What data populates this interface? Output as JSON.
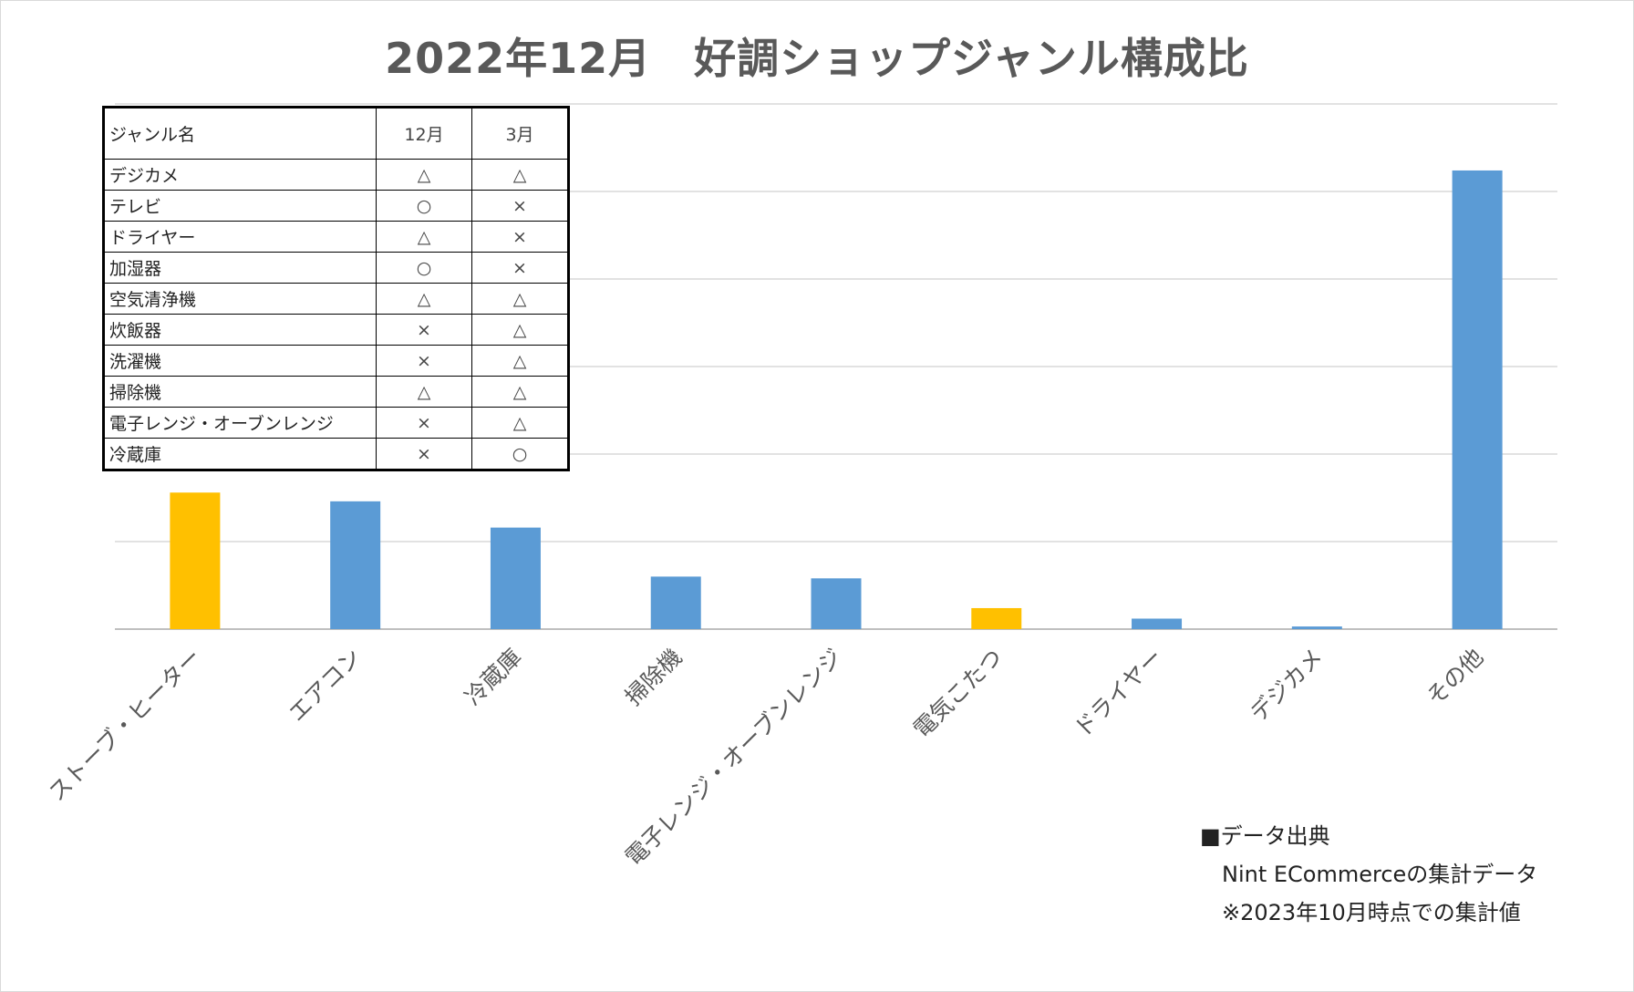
{
  "chart_data": {
    "type": "bar",
    "title": "2022年12月　好調ショップジャンル構成比",
    "categories": [
      "ストーブ・ヒーター",
      "エアコン",
      "冷蔵庫",
      "掃除機",
      "電子レンジ・オーブンレンジ",
      "電気こたつ",
      "ドライヤー",
      "デジカメ",
      "その他"
    ],
    "values": [
      7.8,
      7.3,
      5.8,
      3.0,
      2.9,
      1.2,
      0.6,
      0.15,
      26.2
    ],
    "bar_colors": [
      "#ffc000",
      "#5b9bd5",
      "#5b9bd5",
      "#5b9bd5",
      "#5b9bd5",
      "#ffc000",
      "#5b9bd5",
      "#5b9bd5",
      "#5b9bd5"
    ],
    "ylim": [
      0,
      30
    ],
    "ytick_step": 5,
    "grid": true,
    "xlabel": "",
    "ylabel": ""
  },
  "table": {
    "header": [
      "ジャンル名",
      "12月",
      "3月"
    ],
    "rows": [
      [
        "デジカメ",
        "△",
        "△"
      ],
      [
        "テレビ",
        "○",
        "×"
      ],
      [
        "ドライヤー",
        "△",
        "×"
      ],
      [
        "加湿器",
        "○",
        "×"
      ],
      [
        "空気清浄機",
        "△",
        "△"
      ],
      [
        "炊飯器",
        "×",
        "△"
      ],
      [
        "洗濯機",
        "×",
        "△"
      ],
      [
        "掃除機",
        "△",
        "△"
      ],
      [
        "電子レンジ・オーブンレンジ",
        "×",
        "△"
      ],
      [
        "冷蔵庫",
        "×",
        "○"
      ]
    ]
  },
  "source": {
    "heading": "■データ出典",
    "line1": "Nint ECommerceの集計データ",
    "line2": "※2023年10月時点での集計値"
  },
  "colors": {
    "highlight": "#ffc000",
    "default": "#5b9bd5",
    "grid": "#d9d9d9",
    "title": "#595959",
    "axis_label": "#595959"
  }
}
